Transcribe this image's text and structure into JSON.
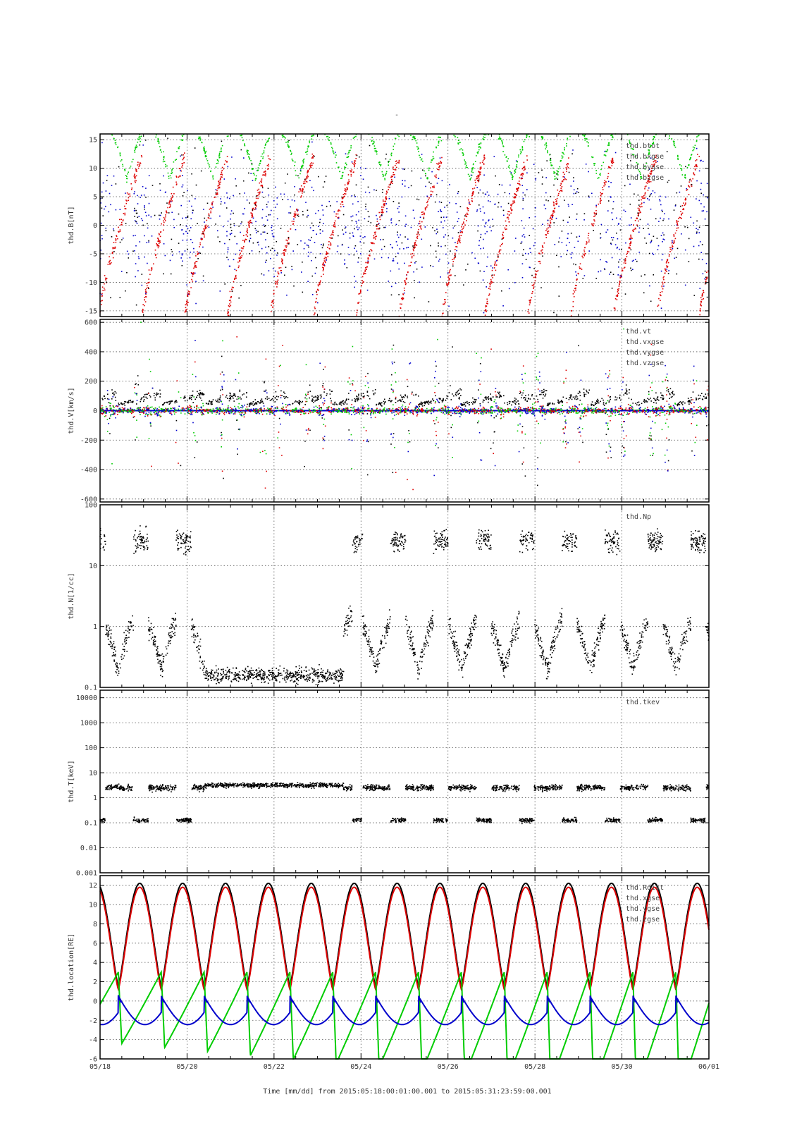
{
  "top_mark": "-",
  "footer": {
    "xlabel": "Time [mm/dd]",
    "from_label": "from",
    "from": "2015:05:18:00:01:00.001",
    "to_label": "to",
    "to": "2015:05:31:23:59:00.001"
  },
  "colors": {
    "black": "#000000",
    "red": "#dd0000",
    "green": "#00cc00",
    "blue": "#0000cc"
  },
  "chart_data": [
    {
      "type": "scatter",
      "ylabel": "thd.B[nT]",
      "yscale": "linear",
      "ylim": [
        -16,
        16
      ],
      "yticks": [
        15,
        10,
        5,
        0,
        -5,
        -10,
        -15
      ],
      "ytick_labels": [
        "15",
        "10",
        "5",
        "0",
        "-5",
        "-10",
        "-15"
      ],
      "legend": [
        "thd.btot",
        "thd.bxgse",
        "thd.bygse",
        "thd.bzgse"
      ],
      "legend_placement": "top-right",
      "grid": true,
      "series_colors": [
        "#000000",
        "#dd0000",
        "#00cc00",
        "#0000cc"
      ],
      "x_range_days": [
        18,
        32
      ],
      "description_points": "dense scatter; red bx rising tracks each orbit, green by arcs near top, blue bz bursts near magnetopause crossings"
    },
    {
      "type": "scatter",
      "ylabel": "thd.V[km/s]",
      "yscale": "linear",
      "ylim": [
        -620,
        620
      ],
      "yticks": [
        600,
        400,
        200,
        0,
        -200,
        -400,
        -600
      ],
      "ytick_labels": [
        "600",
        "400",
        "200",
        "0",
        "-200",
        "-400",
        "-600"
      ],
      "legend": [
        "thd.vt",
        "thd.vxgse",
        "thd.vygse",
        "thd.vzgse"
      ],
      "legend_placement": "top-right",
      "grid": true,
      "series_colors": [
        "#000000",
        "#dd0000",
        "#00cc00",
        "#0000cc"
      ],
      "x_range_days": [
        18,
        32
      ]
    },
    {
      "type": "scatter",
      "ylabel": "thd.N[1/cc]",
      "yscale": "log",
      "ylim": [
        0.1,
        100
      ],
      "yticks": [
        100,
        10,
        1,
        0.1
      ],
      "ytick_labels": [
        "100",
        "10",
        "1",
        "0.1"
      ],
      "legend": [
        "thd.Np"
      ],
      "legend_placement": "top-right",
      "grid": true,
      "series_colors": [
        "#000000"
      ],
      "x_range_days": [
        18,
        32
      ]
    },
    {
      "type": "scatter",
      "ylabel": "thd.T[keV]",
      "yscale": "log",
      "ylim": [
        0.001,
        20000
      ],
      "yticks": [
        10000,
        1000,
        100,
        10,
        1,
        0.1,
        0.01,
        0.001
      ],
      "ytick_labels": [
        "10000",
        "1000",
        "100",
        "10",
        "1",
        "0.1",
        "0.01",
        "0.001"
      ],
      "legend": [
        "thd.tkev"
      ],
      "legend_placement": "top-right",
      "grid": true,
      "series_colors": [
        "#000000"
      ],
      "x_range_days": [
        18,
        32
      ]
    },
    {
      "type": "line",
      "ylabel": "thd.location[RE]",
      "yscale": "linear",
      "ylim": [
        -6,
        13
      ],
      "yticks": [
        12,
        10,
        8,
        6,
        4,
        2,
        0,
        -2,
        -4,
        -6
      ],
      "ytick_labels": [
        "12",
        "10",
        "8",
        "6",
        "4",
        "2",
        "0",
        "-2",
        "-4",
        "-6"
      ],
      "legend": [
        "thd.Rdist",
        "thd.xgse",
        "thd.ygse",
        "thd.zgse"
      ],
      "legend_placement": "top-right",
      "grid": true,
      "series_colors": [
        "#000000",
        "#dd0000",
        "#00cc00",
        "#0000cc"
      ],
      "x_range_days": [
        18,
        32
      ],
      "orbit_period_days": 0.986,
      "apogee_re": 12.2,
      "perigee_re": 1.5
    }
  ],
  "x_axis": {
    "range_days": [
      18,
      32
    ],
    "ticks": [
      18,
      20,
      22,
      24,
      26,
      28,
      30,
      32
    ],
    "tick_labels": [
      "05/18",
      "05/20",
      "05/22",
      "05/24",
      "05/26",
      "05/28",
      "05/30",
      "06/01"
    ]
  }
}
